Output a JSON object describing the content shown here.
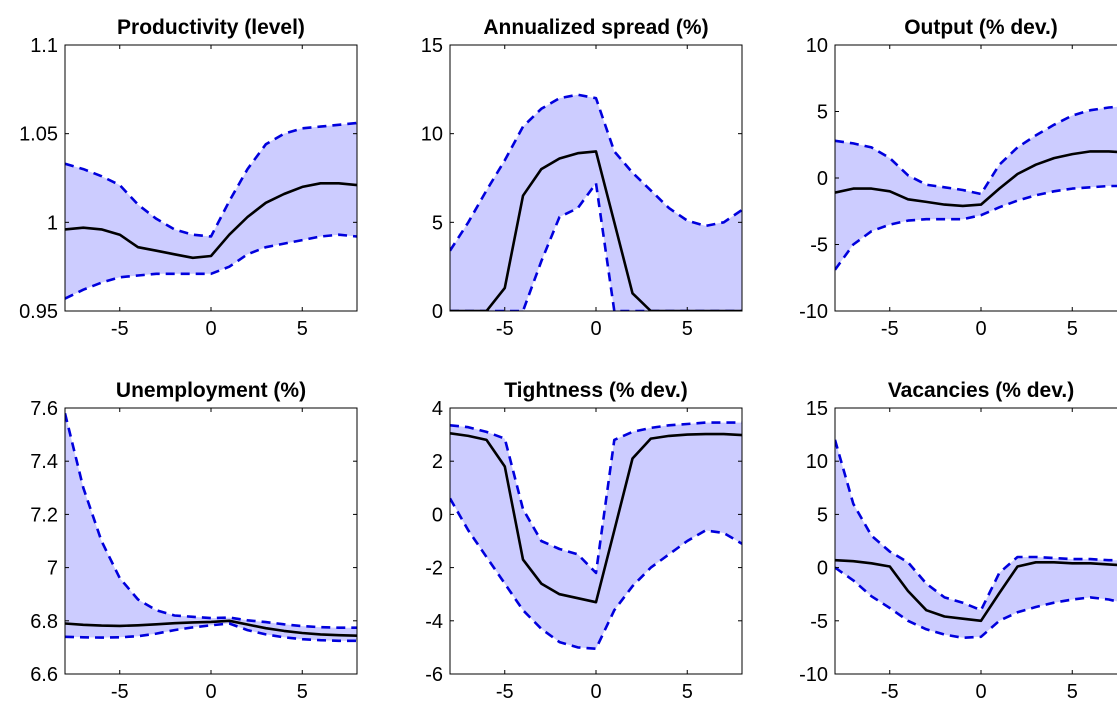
{
  "colors": {
    "band_fill": "#ccccff",
    "bound_line": "#0000dd",
    "median_line": "#000000",
    "axis": "#000000"
  },
  "chart_data": [
    {
      "type": "line",
      "title": "Productivity (level)",
      "x": [
        -8,
        -7,
        -6,
        -5,
        -4,
        -3,
        -2,
        -1,
        0,
        1,
        2,
        3,
        4,
        5,
        6,
        7,
        8
      ],
      "xlim": [
        -8,
        8
      ],
      "ylim": [
        0.95,
        1.1
      ],
      "xticks": [
        -5,
        0,
        5
      ],
      "xtick_labels": [
        "-5",
        "0",
        "5"
      ],
      "yticks": [
        0.95,
        1,
        1.05,
        1.1
      ],
      "ytick_labels": [
        "0.95",
        "1",
        "1.05",
        "1.1"
      ],
      "median": [
        0.996,
        0.997,
        0.996,
        0.993,
        0.986,
        0.984,
        0.982,
        0.98,
        0.981,
        0.993,
        1.003,
        1.011,
        1.016,
        1.02,
        1.022,
        1.022,
        1.021
      ],
      "upper": [
        1.033,
        1.03,
        1.026,
        1.021,
        1.01,
        1.002,
        0.996,
        0.993,
        0.992,
        1.012,
        1.03,
        1.044,
        1.05,
        1.053,
        1.054,
        1.055,
        1.056
      ],
      "lower": [
        0.957,
        0.962,
        0.966,
        0.969,
        0.97,
        0.971,
        0.971,
        0.971,
        0.971,
        0.975,
        0.982,
        0.986,
        0.988,
        0.99,
        0.992,
        0.993,
        0.992
      ],
      "grid": false,
      "legend": false
    },
    {
      "type": "line",
      "title": "Annualized spread (%)",
      "x": [
        -8,
        -7,
        -6,
        -5,
        -4,
        -3,
        -2,
        -1,
        0,
        1,
        2,
        3,
        4,
        5,
        6,
        7,
        8
      ],
      "xlim": [
        -8,
        8
      ],
      "ylim": [
        0,
        15
      ],
      "xticks": [
        -5,
        0,
        5
      ],
      "xtick_labels": [
        "-5",
        "0",
        "5"
      ],
      "yticks": [
        0,
        5,
        10,
        15
      ],
      "ytick_labels": [
        "0",
        "5",
        "10",
        "15"
      ],
      "median": [
        0,
        0,
        0,
        1.3,
        6.5,
        8.0,
        8.6,
        8.9,
        9.0,
        5.0,
        1.0,
        0,
        0,
        0,
        0,
        0,
        0
      ],
      "upper": [
        3.4,
        5.0,
        6.8,
        8.5,
        10.4,
        11.4,
        12.0,
        12.2,
        12.0,
        9.0,
        7.8,
        6.8,
        5.8,
        5.1,
        4.8,
        5.0,
        5.7
      ],
      "lower": [
        0,
        0,
        0,
        0,
        0,
        2.8,
        5.3,
        5.8,
        7.2,
        0,
        0,
        0,
        0,
        0,
        0,
        0,
        0
      ],
      "grid": false,
      "legend": false
    },
    {
      "type": "line",
      "title": "Output (% dev.)",
      "x": [
        -8,
        -7,
        -6,
        -5,
        -4,
        -3,
        -2,
        -1,
        0,
        1,
        2,
        3,
        4,
        5,
        6,
        7,
        8
      ],
      "xlim": [
        -8,
        8
      ],
      "ylim": [
        -10,
        10
      ],
      "xticks": [
        -5,
        0,
        5
      ],
      "xtick_labels": [
        "-5",
        "0",
        "5"
      ],
      "yticks": [
        -10,
        -5,
        0,
        5,
        10
      ],
      "ytick_labels": [
        "-10",
        "-5",
        "0",
        "5",
        "10"
      ],
      "median": [
        -1.1,
        -0.8,
        -0.8,
        -1.0,
        -1.6,
        -1.8,
        -2.0,
        -2.1,
        -2.0,
        -0.8,
        0.3,
        1.0,
        1.5,
        1.8,
        2.0,
        2.0,
        1.9
      ],
      "upper": [
        2.8,
        2.6,
        2.3,
        1.5,
        0.2,
        -0.5,
        -0.7,
        -0.9,
        -1.2,
        1.0,
        2.3,
        3.2,
        4.0,
        4.7,
        5.1,
        5.3,
        5.4
      ],
      "lower": [
        -6.9,
        -5.0,
        -4.0,
        -3.5,
        -3.2,
        -3.1,
        -3.1,
        -3.1,
        -2.8,
        -2.2,
        -1.7,
        -1.3,
        -1.0,
        -0.8,
        -0.7,
        -0.6,
        -0.6
      ],
      "grid": false,
      "legend": false
    },
    {
      "type": "line",
      "title": "Unemployment (%)",
      "x": [
        -8,
        -7,
        -6,
        -5,
        -4,
        -3,
        -2,
        -1,
        0,
        1,
        2,
        3,
        4,
        5,
        6,
        7,
        8
      ],
      "xlim": [
        -8,
        8
      ],
      "ylim": [
        6.6,
        7.6
      ],
      "xticks": [
        -5,
        0,
        5
      ],
      "xtick_labels": [
        "-5",
        "0",
        "5"
      ],
      "yticks": [
        6.6,
        6.8,
        7,
        7.2,
        7.4,
        7.6
      ],
      "ytick_labels": [
        "6.6",
        "6.8",
        "7",
        "7.2",
        "7.4",
        "7.6"
      ],
      "median": [
        6.79,
        6.785,
        6.782,
        6.781,
        6.783,
        6.787,
        6.791,
        6.794,
        6.796,
        6.8,
        6.786,
        6.772,
        6.762,
        6.754,
        6.749,
        6.746,
        6.744
      ],
      "upper": [
        7.58,
        7.3,
        7.1,
        6.96,
        6.88,
        6.84,
        6.82,
        6.815,
        6.81,
        6.812,
        6.802,
        6.795,
        6.787,
        6.78,
        6.776,
        6.774,
        6.774
      ],
      "lower": [
        6.74,
        6.738,
        6.737,
        6.738,
        6.742,
        6.752,
        6.765,
        6.775,
        6.783,
        6.79,
        6.765,
        6.749,
        6.738,
        6.731,
        6.727,
        6.725,
        6.725
      ],
      "grid": false,
      "legend": false
    },
    {
      "type": "line",
      "title": "Tightness (% dev.)",
      "x": [
        -8,
        -7,
        -6,
        -5,
        -4,
        -3,
        -2,
        -1,
        0,
        1,
        2,
        3,
        4,
        5,
        6,
        7,
        8
      ],
      "xlim": [
        -8,
        8
      ],
      "ylim": [
        -6,
        4
      ],
      "xticks": [
        -5,
        0,
        5
      ],
      "xtick_labels": [
        "-5",
        "0",
        "5"
      ],
      "yticks": [
        -6,
        -4,
        -2,
        0,
        2,
        4
      ],
      "ytick_labels": [
        "-6",
        "-4",
        "-2",
        "0",
        "2",
        "4"
      ],
      "median": [
        3.05,
        2.95,
        2.8,
        1.8,
        -1.7,
        -2.6,
        -3.0,
        -3.15,
        -3.3,
        -0.6,
        2.1,
        2.85,
        2.95,
        3.0,
        3.02,
        3.02,
        2.98
      ],
      "upper": [
        3.35,
        3.28,
        3.1,
        2.85,
        0.2,
        -1.0,
        -1.3,
        -1.5,
        -2.2,
        2.8,
        3.1,
        3.25,
        3.35,
        3.4,
        3.45,
        3.45,
        3.45
      ],
      "lower": [
        0.6,
        -0.6,
        -1.6,
        -2.6,
        -3.6,
        -4.3,
        -4.8,
        -5.0,
        -5.05,
        -3.6,
        -2.7,
        -2.0,
        -1.5,
        -1.0,
        -0.6,
        -0.7,
        -1.1
      ],
      "grid": false,
      "legend": false
    },
    {
      "type": "line",
      "title": "Vacancies (% dev.)",
      "x": [
        -8,
        -7,
        -6,
        -5,
        -4,
        -3,
        -2,
        -1,
        0,
        1,
        2,
        3,
        4,
        5,
        6,
        7,
        8
      ],
      "xlim": [
        -8,
        8
      ],
      "ylim": [
        -10,
        15
      ],
      "xticks": [
        -5,
        0,
        5
      ],
      "xtick_labels": [
        "-5",
        "0",
        "5"
      ],
      "yticks": [
        -10,
        -5,
        0,
        5,
        10,
        15
      ],
      "ytick_labels": [
        "-10",
        "-5",
        "0",
        "5",
        "10",
        "15"
      ],
      "median": [
        0.7,
        0.6,
        0.4,
        0.1,
        -2.2,
        -4.0,
        -4.6,
        -4.8,
        -5.0,
        -2.4,
        0.1,
        0.5,
        0.5,
        0.4,
        0.4,
        0.3,
        0.2
      ],
      "upper": [
        12.0,
        6.0,
        3.0,
        1.5,
        0.5,
        -1.5,
        -2.8,
        -3.3,
        -4.0,
        -0.5,
        1.0,
        1.0,
        0.9,
        0.8,
        0.8,
        0.7,
        0.7
      ],
      "lower": [
        0.0,
        -1.2,
        -2.7,
        -3.8,
        -5.0,
        -5.8,
        -6.3,
        -6.6,
        -6.5,
        -5.0,
        -4.2,
        -3.7,
        -3.3,
        -3.0,
        -2.8,
        -3.0,
        -3.4
      ],
      "grid": false,
      "legend": false
    }
  ]
}
